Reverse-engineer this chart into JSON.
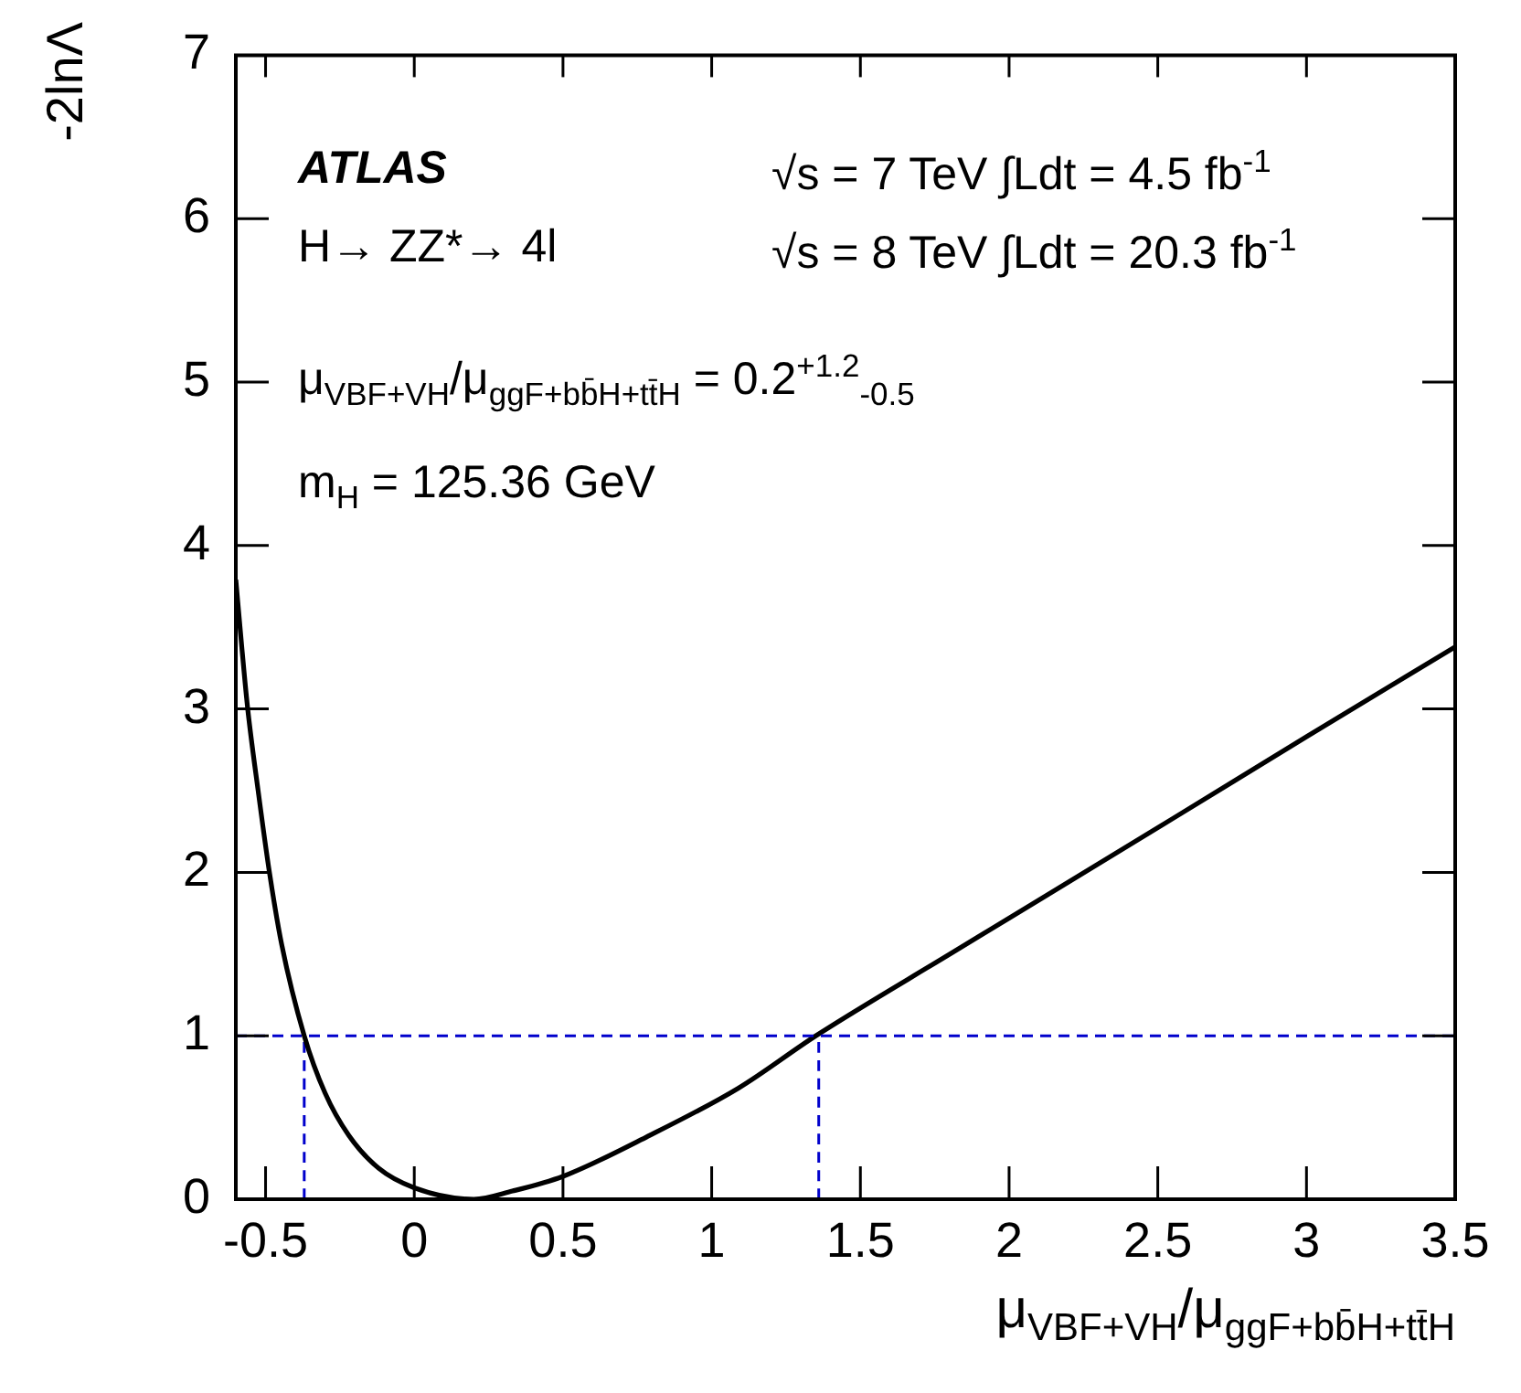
{
  "chart_data": {
    "type": "line",
    "xlabel": "μ$_{VBF+VH}$/μ$_{ggF+bb̄H+tt̄H}$",
    "ylabel": "-2lnΛ",
    "xlim": [
      -0.6,
      3.5
    ],
    "xticks": [
      -0.5,
      0,
      0.5,
      1,
      1.5,
      2,
      2.5,
      3,
      3.5
    ],
    "ylim": [
      0,
      7
    ],
    "yticks": [
      0,
      1,
      2,
      3,
      4,
      5,
      6,
      7
    ],
    "grid": false,
    "legend": false,
    "marker": "none",
    "series": [
      {
        "color": "#000000",
        "line_style": "solid",
        "x": [
          -0.6,
          -0.58,
          -0.56,
          -0.525,
          -0.487,
          -0.446,
          -0.37,
          -0.3,
          -0.22,
          -0.12,
          0,
          0.2,
          0.33,
          0.5,
          0.78,
          1.09,
          1.35,
          1.81,
          2.0,
          2.56,
          3.0,
          3.5
        ],
        "values": [
          3.79,
          3.38,
          3.0,
          2.5,
          2.0,
          1.56,
          1.0,
          0.65,
          0.39,
          0.19,
          0.07,
          0,
          0.05,
          0.14,
          0.38,
          0.68,
          1.0,
          1.51,
          1.72,
          2.34,
          2.83,
          3.38
        ]
      },
      {
        "color": "#0000cc",
        "line_style": "dashed",
        "x": [
          -0.37,
          -0.37
        ],
        "values": [
          0,
          1
        ]
      },
      {
        "color": "#0000cc",
        "line_style": "dashed",
        "x": [
          1.36,
          1.36
        ],
        "values": [
          0,
          1
        ]
      }
    ],
    "ref_lines": [
      {
        "axis": "y",
        "value": 1,
        "color": "#0000cc",
        "line_style": "dashed"
      }
    ],
    "annotations": [
      "ATLAS",
      "H→ ZZ*→ 4l",
      "√s = 7 TeV ∫Ldt = 4.5 fb$^{-1}$",
      "√s = 8 TeV ∫Ldt = 20.3 fb$^{-1}$",
      "μ$_{VBF+VH}$/μ$_{ggF+bb̄H+tt̄H}$ =  0.2$^{+1.2}$$_{-0.5}$",
      "m$_{H}$ = 125.36 GeV"
    ]
  }
}
